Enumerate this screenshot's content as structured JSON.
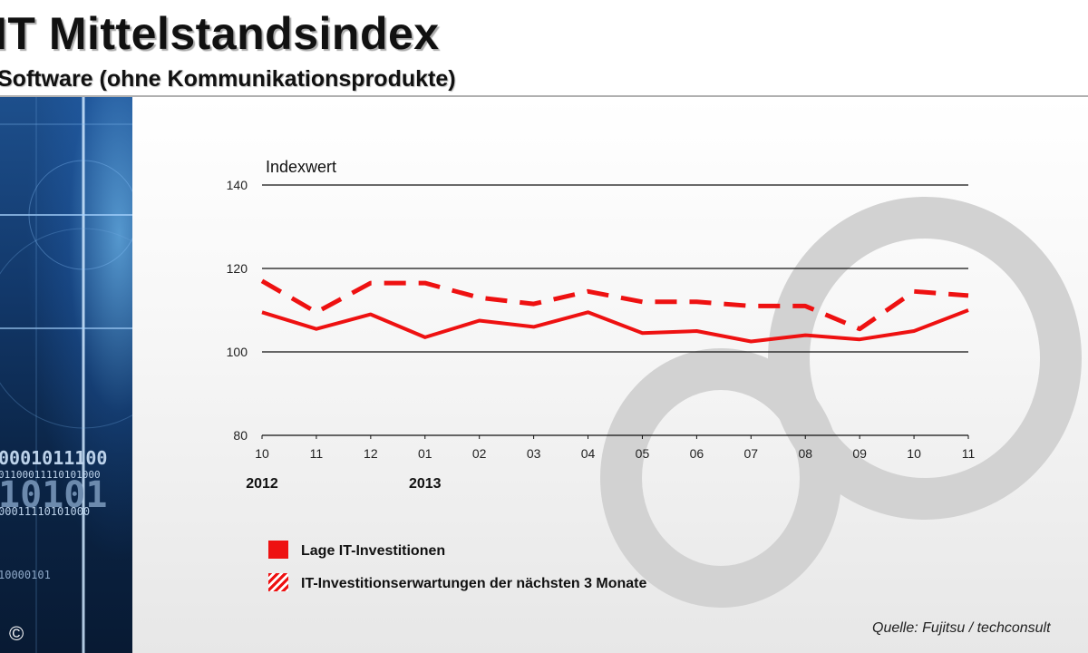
{
  "header": {
    "title": "IT Mittelstandsindex",
    "subtitle": "Software (ohne Kommunikationsprodukte)"
  },
  "side_panel": {
    "binary_rows": [
      "0001011100",
      "01100011110101000",
      "10101",
      "00011110101000",
      "10000101"
    ],
    "copyright": "©"
  },
  "chart_data": {
    "type": "line",
    "ylabel": "Indexwert",
    "ylim": [
      80,
      140
    ],
    "yticks": [
      80,
      100,
      120,
      140
    ],
    "grid": true,
    "categories": [
      "10",
      "11",
      "12",
      "01",
      "02",
      "03",
      "04",
      "05",
      "06",
      "07",
      "08",
      "09",
      "10",
      "11"
    ],
    "year_labels": [
      {
        "label": "2012",
        "category_index": 0
      },
      {
        "label": "2013",
        "category_index": 3
      }
    ],
    "series": [
      {
        "name": "Lage IT-Investitionen",
        "style": "solid",
        "color": "#ee1111",
        "values": [
          109.5,
          105.5,
          109,
          103.5,
          107.5,
          106,
          109.5,
          104.5,
          105,
          102.5,
          104,
          103,
          105,
          110
        ]
      },
      {
        "name": "IT-Investitionserwartungen der nächsten 3 Monate",
        "style": "dashed",
        "color": "#ee1111",
        "values": [
          117,
          109.5,
          116.5,
          116.5,
          113,
          111.5,
          114.5,
          112,
          112,
          111,
          111,
          105.5,
          114.5,
          113.5
        ]
      }
    ]
  },
  "legend": {
    "items": [
      {
        "label": "Lage IT-Investitionen",
        "swatch": "solid"
      },
      {
        "label": "IT-Investitionserwartungen der nächsten 3 Monate",
        "swatch": "hatched"
      }
    ]
  },
  "source": "Quelle: Fujitsu / techconsult",
  "colors": {
    "series": "#ee1111",
    "grid": "#111111",
    "watermark": "#d2d2d2"
  }
}
